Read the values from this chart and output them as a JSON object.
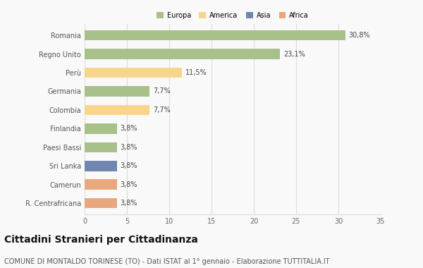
{
  "categories": [
    "Romania",
    "Regno Unito",
    "Perù",
    "Germania",
    "Colombia",
    "Finlandia",
    "Paesi Bassi",
    "Sri Lanka",
    "Camerun",
    "R. Centrafricana"
  ],
  "values": [
    30.8,
    23.1,
    11.5,
    7.7,
    7.7,
    3.8,
    3.8,
    3.8,
    3.8,
    3.8
  ],
  "labels": [
    "30,8%",
    "23,1%",
    "11,5%",
    "7,7%",
    "7,7%",
    "3,8%",
    "3,8%",
    "3,8%",
    "3,8%",
    "3,8%"
  ],
  "bar_colors": [
    "#a8c08a",
    "#a8c08a",
    "#f7d58b",
    "#a8c08a",
    "#f7d58b",
    "#a8c08a",
    "#a8c08a",
    "#6e86b0",
    "#e8a87c",
    "#e8a87c"
  ],
  "legend": {
    "labels": [
      "Europa",
      "America",
      "Asia",
      "Africa"
    ],
    "colors": [
      "#a8c08a",
      "#f7d58b",
      "#6e86b0",
      "#e8a87c"
    ]
  },
  "xlim": [
    0,
    35
  ],
  "xticks": [
    0,
    5,
    10,
    15,
    20,
    25,
    30,
    35
  ],
  "title": "Cittadini Stranieri per Cittadinanza",
  "subtitle": "COMUNE DI MONTALDO TORINESE (TO) - Dati ISTAT al 1° gennaio - Elaborazione TUTTITALIA.IT",
  "background_color": "#f9f9f9",
  "grid_color": "#dddddd",
  "title_fontsize": 10,
  "subtitle_fontsize": 7,
  "label_fontsize": 7,
  "tick_fontsize": 7,
  "bar_height": 0.55
}
